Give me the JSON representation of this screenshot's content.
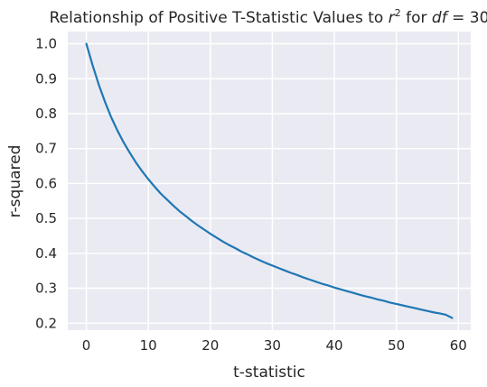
{
  "chart_data": {
    "type": "line",
    "title": {
      "prefix": "Relationship of Positive T-Statistic Values to ",
      "r_symbol": "r",
      "r_exponent": "2",
      "for_text": " for ",
      "df_symbol": "df",
      "df_equals": " = 30"
    },
    "xlabel": "t-statistic",
    "ylabel": "r-squared",
    "xlim": [
      -3,
      62
    ],
    "ylim": [
      0.18,
      1.035
    ],
    "xticks": [
      0,
      10,
      20,
      30,
      40,
      50,
      60
    ],
    "yticks": [
      0.2,
      0.3,
      0.4,
      0.5,
      0.6,
      0.7,
      0.8,
      0.9,
      1.0
    ],
    "xtick_labels": [
      "0",
      "10",
      "20",
      "30",
      "40",
      "50",
      "60"
    ],
    "ytick_labels": [
      "0.2",
      "0.3",
      "0.4",
      "0.5",
      "0.6",
      "0.7",
      "0.8",
      "0.9",
      "1.0"
    ],
    "grid": true,
    "series": [
      {
        "color": "#1f77b4",
        "x": [
          0,
          1,
          2,
          3,
          4,
          5,
          6,
          7,
          8,
          9,
          10,
          11,
          12,
          13,
          14,
          15,
          16,
          17,
          18,
          19,
          20,
          21,
          22,
          23,
          24,
          25,
          26,
          27,
          28,
          29,
          30,
          31,
          32,
          33,
          34,
          35,
          36,
          37,
          38,
          39,
          40,
          41,
          42,
          43,
          44,
          45,
          46,
          47,
          48,
          49,
          50,
          51,
          52,
          53,
          54,
          55,
          56,
          57,
          58,
          59
        ],
        "y": [
          1.0,
          0.939,
          0.883,
          0.834,
          0.79,
          0.752,
          0.718,
          0.688,
          0.66,
          0.635,
          0.612,
          0.591,
          0.571,
          0.554,
          0.537,
          0.521,
          0.507,
          0.493,
          0.48,
          0.468,
          0.456,
          0.445,
          0.434,
          0.424,
          0.415,
          0.405,
          0.397,
          0.388,
          0.38,
          0.372,
          0.365,
          0.358,
          0.351,
          0.344,
          0.338,
          0.331,
          0.325,
          0.319,
          0.313,
          0.308,
          0.302,
          0.297,
          0.292,
          0.287,
          0.282,
          0.277,
          0.273,
          0.268,
          0.264,
          0.259,
          0.255,
          0.251,
          0.247,
          0.243,
          0.239,
          0.235,
          0.231,
          0.228,
          0.224,
          0.215
        ]
      }
    ]
  },
  "style": {
    "plot_background": "#eaeaf2",
    "grid_color": "#ffffff",
    "text_color": "#262626",
    "line_color": "#1f77b4"
  }
}
